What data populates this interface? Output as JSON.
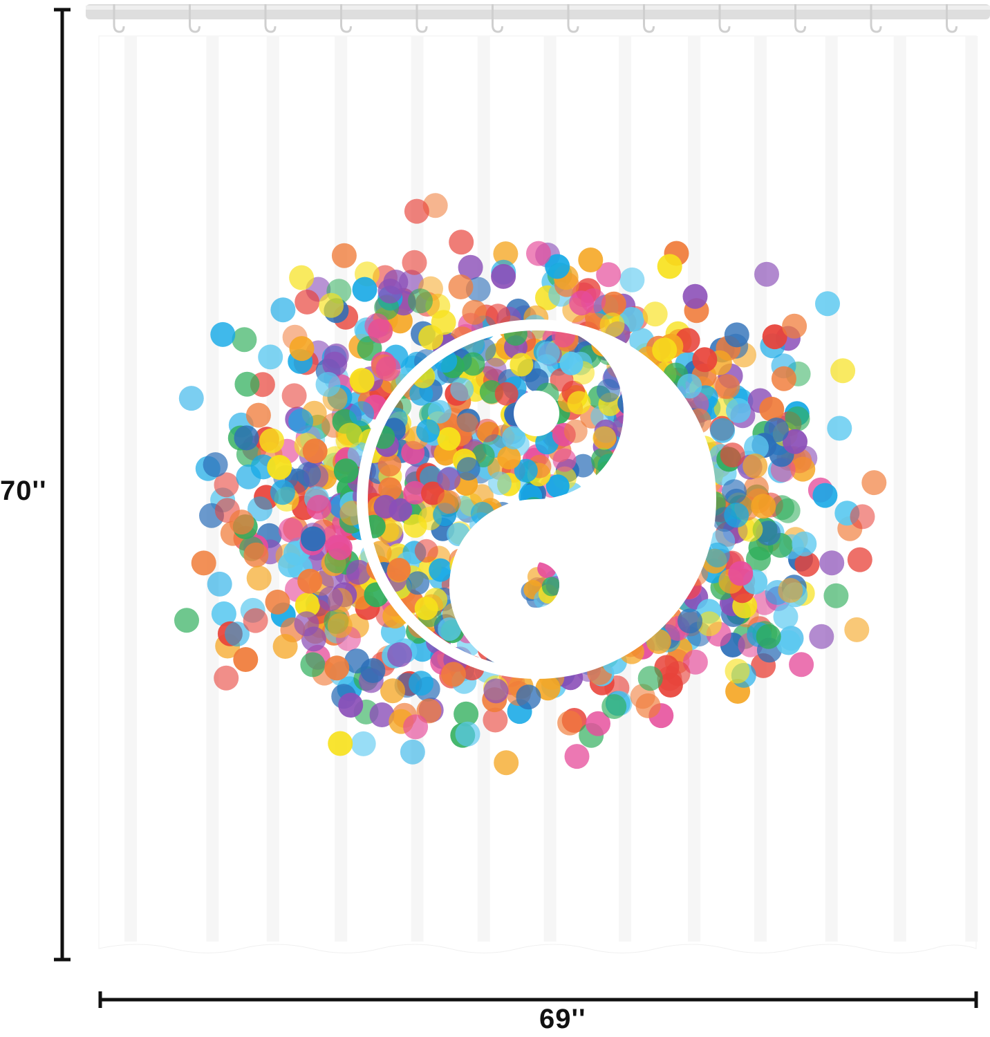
{
  "product": {
    "height_label": "70''",
    "width_label": "69''",
    "hook_count": 12
  },
  "colors": {
    "rod": "#dcdcdc",
    "curtain": "#ffffff",
    "fold_shadow": "#eeeeee",
    "dimension_line": "#111111",
    "dot_palette": [
      "#e8433a",
      "#f5a623",
      "#f7e11b",
      "#2fae5b",
      "#16a9e6",
      "#2d6fb8",
      "#e64d9b",
      "#8b4fb8",
      "#f07c3a",
      "#5cc9f0"
    ]
  },
  "artwork": {
    "symbol": "yin-yang-icon",
    "pattern": "confetti-dots"
  }
}
